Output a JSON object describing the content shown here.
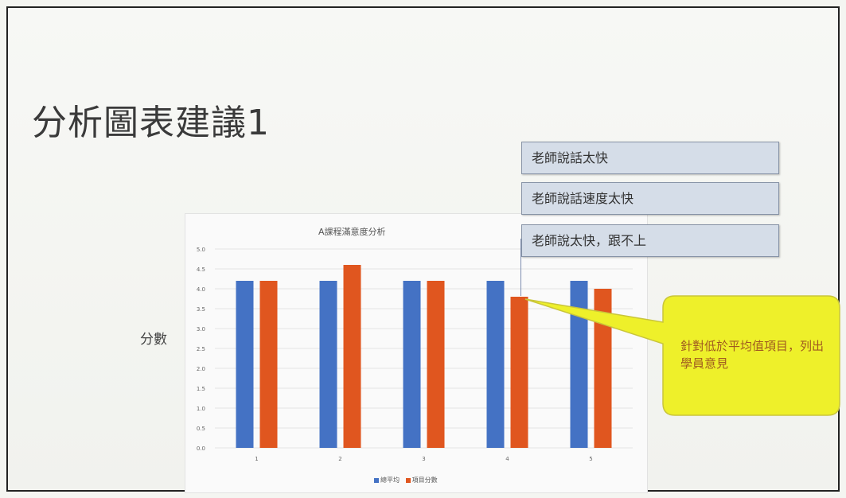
{
  "slide": {
    "title": "分析圖表建議1"
  },
  "comments": [
    "老師說話太快",
    "老師說話速度太快",
    "老師說太快，跟不上"
  ],
  "callout": {
    "text": "針對低於平均值項目，列出學員意見"
  },
  "colors": {
    "series1": "#4472c4",
    "series2": "#e0561f",
    "callout_fill": "#eef02a"
  },
  "chart_data": {
    "type": "bar",
    "title": "A課程滿意度分析",
    "ylabel": "分數",
    "categories": [
      "1",
      "2",
      "3",
      "4",
      "5"
    ],
    "series": [
      {
        "name": "總平均",
        "values": [
          4.2,
          4.2,
          4.2,
          4.2,
          4.2
        ]
      },
      {
        "name": "項目分數",
        "values": [
          4.2,
          4.6,
          4.2,
          3.8,
          4.0
        ]
      }
    ],
    "ylim": [
      0,
      5
    ],
    "yticks": [
      "0.0",
      "0.5",
      "1.0",
      "1.5",
      "2.0",
      "2.5",
      "3.0",
      "3.5",
      "4.0",
      "4.5",
      "5.0"
    ],
    "grid": true,
    "legend": "bottom"
  }
}
